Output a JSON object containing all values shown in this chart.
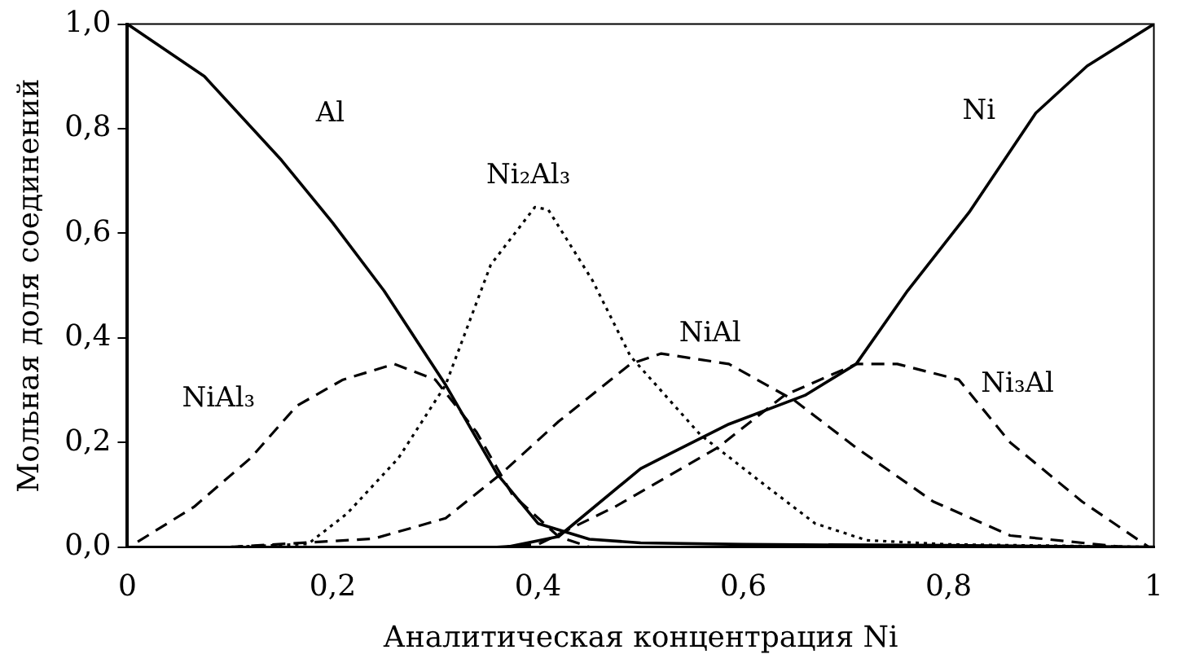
{
  "chart_data": {
    "type": "line",
    "xlabel": "Аналитическая концентрация Ni",
    "ylabel": "Мольная доля соединений",
    "xlim": [
      0,
      1
    ],
    "ylim": [
      0,
      1
    ],
    "xticks": [
      {
        "value": 0,
        "label": "0"
      },
      {
        "value": 0.2,
        "label": "0,2"
      },
      {
        "value": 0.4,
        "label": "0,4"
      },
      {
        "value": 0.6,
        "label": "0,6"
      },
      {
        "value": 0.8,
        "label": "0,8"
      },
      {
        "value": 1,
        "label": "1"
      }
    ],
    "yticks": [
      {
        "value": 0,
        "label": "0,0"
      },
      {
        "value": 0.2,
        "label": "0,2"
      },
      {
        "value": 0.4,
        "label": "0,4"
      },
      {
        "value": 0.6,
        "label": "0,6"
      },
      {
        "value": 0.8,
        "label": "0,8"
      },
      {
        "value": 1,
        "label": "1,0"
      }
    ],
    "grid": false,
    "legend": false,
    "marker": "none",
    "series": [
      {
        "name": "Al",
        "color": "#000000",
        "line_style": "solid",
        "x": [
          0,
          0.075,
          0.15,
          0.2,
          0.25,
          0.31,
          0.36,
          0.4,
          0.45,
          0.5,
          0.6,
          0.8,
          1
        ],
        "values": [
          1,
          0.9,
          0.74,
          0.62,
          0.49,
          0.31,
          0.14,
          0.045,
          0.015,
          0.008,
          0.005,
          0.003,
          0
        ]
      },
      {
        "name": "NiAl₃",
        "color": "#000000",
        "line_style": "dashed",
        "x": [
          0.01,
          0.065,
          0.12,
          0.165,
          0.21,
          0.26,
          0.3,
          0.34,
          0.375,
          0.42,
          0.45
        ],
        "values": [
          0.01,
          0.077,
          0.17,
          0.27,
          0.32,
          0.35,
          0.32,
          0.22,
          0.1,
          0.02,
          0
        ]
      },
      {
        "name": "Ni₂Al₃",
        "color": "#000000",
        "line_style": "dotted",
        "x": [
          0.1,
          0.176,
          0.214,
          0.264,
          0.31,
          0.354,
          0.397,
          0.41,
          0.453,
          0.49,
          0.558,
          0.62,
          0.67,
          0.72,
          0.8,
          1
        ],
        "values": [
          0,
          0.006,
          0.064,
          0.17,
          0.31,
          0.54,
          0.65,
          0.645,
          0.51,
          0.365,
          0.215,
          0.12,
          0.045,
          0.013,
          0.005,
          0
        ]
      },
      {
        "name": "NiAl",
        "color": "#000000",
        "line_style": "dashed",
        "x": [
          0.1,
          0.24,
          0.31,
          0.364,
          0.42,
          0.49,
          0.52,
          0.586,
          0.65,
          0.71,
          0.785,
          0.86,
          0.97
        ],
        "values": [
          0,
          0.016,
          0.055,
          0.14,
          0.24,
          0.35,
          0.37,
          0.35,
          0.28,
          0.19,
          0.087,
          0.022,
          0
        ]
      },
      {
        "name": "Ni₃Al",
        "color": "#000000",
        "line_style": "dashed",
        "x": [
          0.36,
          0.4,
          0.475,
          0.575,
          0.64,
          0.71,
          0.75,
          0.81,
          0.86,
          0.93,
          0.995
        ],
        "values": [
          0,
          0.005,
          0.077,
          0.19,
          0.29,
          0.35,
          0.35,
          0.32,
          0.2,
          0.087,
          0
        ]
      },
      {
        "name": "Ni",
        "color": "#000000",
        "line_style": "solid",
        "x": [
          0.37,
          0.42,
          0.5,
          0.53,
          0.586,
          0.66,
          0.71,
          0.76,
          0.82,
          0.885,
          0.935,
          1
        ],
        "values": [
          0,
          0.02,
          0.15,
          0.18,
          0.235,
          0.29,
          0.35,
          0.49,
          0.64,
          0.83,
          0.92,
          1
        ]
      }
    ]
  }
}
